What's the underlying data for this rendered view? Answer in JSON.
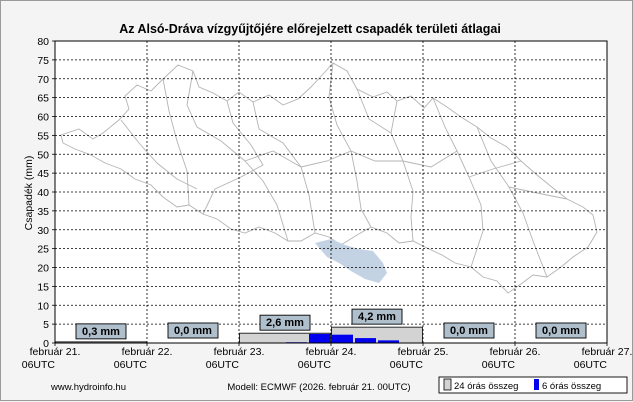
{
  "chart_data": {
    "type": "bar",
    "title": "Az Alsó-Dráva vízgyűjtőjére előrejelzett csapadék területi átlagai",
    "ylabel": "Csapadék (mm)",
    "ylim": [
      0,
      80
    ],
    "yticks": [
      0,
      5,
      10,
      15,
      20,
      25,
      30,
      35,
      40,
      45,
      50,
      55,
      60,
      65,
      70,
      75,
      80
    ],
    "grid": true,
    "x_ticks": [
      {
        "line1": "február 21.",
        "line2": "06UTC"
      },
      {
        "line1": "február 22.",
        "line2": "06UTC"
      },
      {
        "line1": "február 23.",
        "line2": "06UTC"
      },
      {
        "line1": "február 24.",
        "line2": "06UTC"
      },
      {
        "line1": "február 25.",
        "line2": "06UTC"
      },
      {
        "line1": "február 26.",
        "line2": "06UTC"
      },
      {
        "line1": "február 27.",
        "line2": "06UTC"
      }
    ],
    "daily_totals": [
      {
        "label": "0,3 mm",
        "value": 0.3
      },
      {
        "label": "0,0 mm",
        "value": 0.0
      },
      {
        "label": "2,6 mm",
        "value": 2.6
      },
      {
        "label": "4,2 mm",
        "value": 4.2
      },
      {
        "label": "0,0 mm",
        "value": 0.0
      },
      {
        "label": "0,0 mm",
        "value": 0.0
      }
    ],
    "six_hour_totals": [
      0.0,
      0.1,
      0.1,
      0.1,
      0.0,
      0.0,
      0.0,
      0.0,
      0.0,
      0.0,
      0.2,
      2.4,
      2.2,
      1.3,
      0.7,
      0.0,
      0.0,
      0.0,
      0.0,
      0.0,
      0.0,
      0.0,
      0.0,
      0.0
    ],
    "legend": [
      {
        "label": "24 órás összeg",
        "color": "#d3d3d3"
      },
      {
        "label": "6 órás összeg",
        "color": "#0000ee"
      }
    ],
    "legend_placement": "bottom-right"
  },
  "footer": {
    "site": "www.hydroinfo.hu",
    "model": "Modell: ECMWF (2026. február 21. 00UTC)"
  },
  "colors": {
    "daily_bar": "#d3d3d3",
    "six_hour_bar": "#0000ee",
    "value_box": "#b0bfcc",
    "map_fill": "#c4d3e4",
    "map_line": "#b4b4b4"
  }
}
